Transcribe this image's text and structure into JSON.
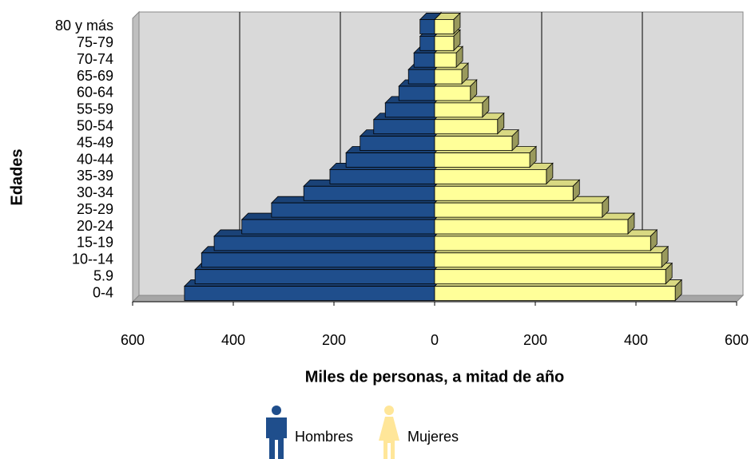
{
  "chart_data": {
    "type": "pyramid",
    "title": "Miles de personas, a mitad de año",
    "y_label": "Edades",
    "categories": [
      "0-4",
      "5.9",
      "10--14",
      "15-19",
      "20-24",
      "25-29",
      "30-34",
      "35-39",
      "40-44",
      "45-49",
      "50-54",
      "55-59",
      "60-64",
      "65-69",
      "70-74",
      "75-79",
      "80 y más"
    ],
    "series": [
      {
        "name": "Hombres",
        "color": "#1f4e8c",
        "values": [
          -497,
          -476,
          -463,
          -438,
          -383,
          -324,
          -260,
          -208,
          -176,
          -148,
          -121,
          -98,
          -71,
          -52,
          -41,
          -29,
          -29
        ]
      },
      {
        "name": "Mujeres",
        "color": "#ffff99",
        "values": [
          478,
          459,
          451,
          429,
          384,
          333,
          275,
          222,
          189,
          154,
          125,
          95,
          71,
          54,
          43,
          38,
          38
        ]
      }
    ],
    "xlim": [
      -600,
      600
    ],
    "xticks": [
      {
        "value": -600,
        "label": "600"
      },
      {
        "value": -400,
        "label": "400"
      },
      {
        "value": -200,
        "label": "200"
      },
      0,
      200,
      400,
      600
    ],
    "grid": true
  }
}
